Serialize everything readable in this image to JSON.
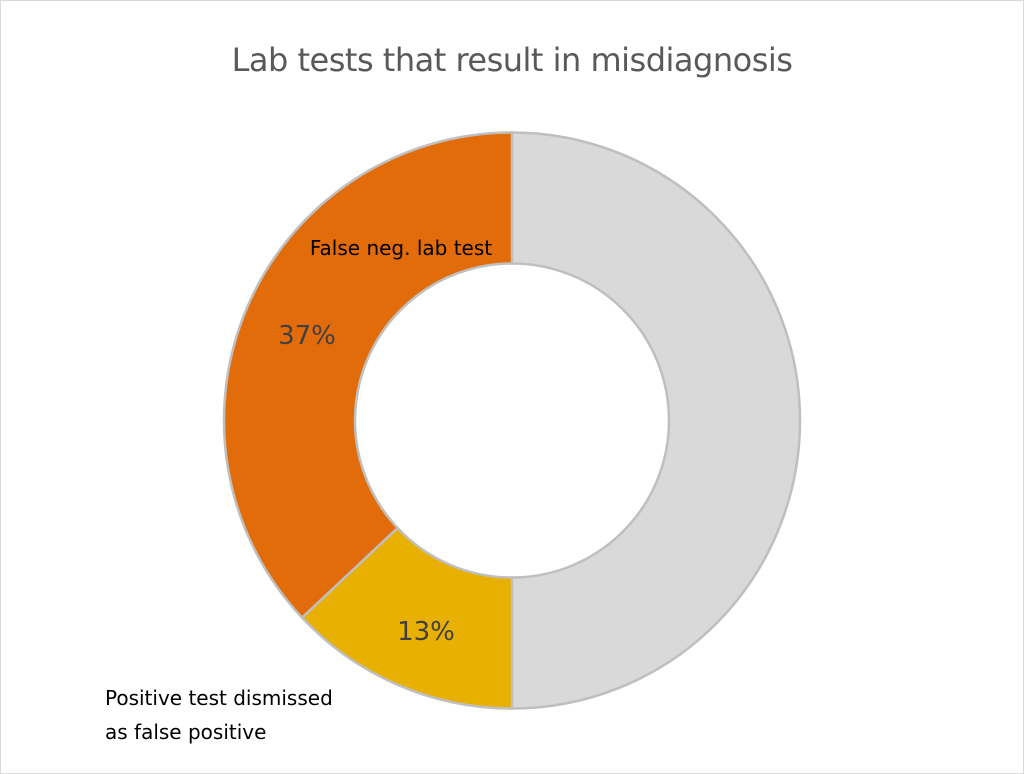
{
  "chart_data": {
    "type": "pie",
    "variant": "donut",
    "title": "Lab tests that result in misdiagnosis",
    "slices": [
      {
        "name": "",
        "value": 50,
        "color": "#D9D9D9",
        "data_label": ""
      },
      {
        "name": "Positive test dismissed as false positive",
        "name_lines": [
          "Positive test dismissed",
          "as false positive"
        ],
        "value": 13,
        "color": "#E8B000",
        "data_label": "13%"
      },
      {
        "name": "False neg. lab test",
        "value": 37,
        "color": "#E36C0A",
        "data_label": "37%"
      }
    ],
    "start_angle": "top, clockwise",
    "slice_border_color": "#BFBFBF",
    "legend": "none"
  }
}
